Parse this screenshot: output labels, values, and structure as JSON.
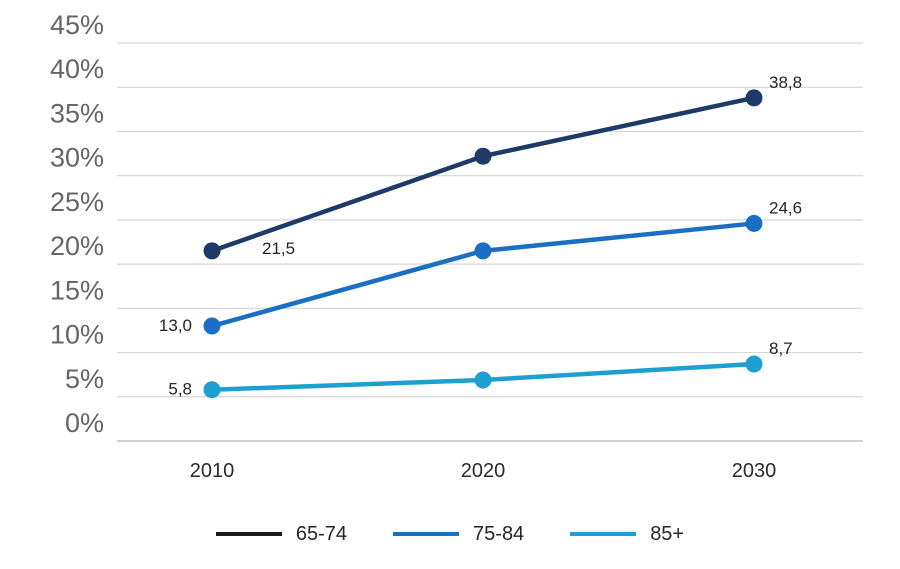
{
  "chart_data": {
    "type": "line",
    "title": "",
    "categories": [
      "2010",
      "2020",
      "2030"
    ],
    "series": [
      {
        "name": "65-74",
        "color": "#1e3a66",
        "legend_swatch_color": "#1a1a1a",
        "values": [
          21.5,
          32.2,
          38.8
        ],
        "point_labels": [
          "21,5",
          "",
          "38,8"
        ],
        "first_label_side": "right"
      },
      {
        "name": "75-84",
        "color": "#1b6fc2",
        "legend_swatch_color": "#1b6fc2",
        "values": [
          13.0,
          21.5,
          24.6
        ],
        "point_labels": [
          "13,0",
          "",
          "24,6"
        ],
        "first_label_side": "left"
      },
      {
        "name": "85+",
        "color": "#1e9fd2",
        "legend_swatch_color": "#1e9fd2",
        "values": [
          5.8,
          6.9,
          8.7
        ],
        "point_labels": [
          "5,8",
          "",
          "8,7"
        ],
        "first_label_side": "left"
      }
    ],
    "ylim": [
      0,
      45
    ],
    "ytick_step": 5,
    "y_tick_labels": [
      "45%",
      "40%",
      "35%",
      "30%",
      "25%",
      "20%",
      "15%",
      "10%",
      "5%",
      "0%"
    ],
    "x_tick_labels": [
      "2010",
      "2020",
      "2030"
    ],
    "decimal_separator": ",",
    "grid": true,
    "legend_position": "bottom",
    "colors": {
      "gridline": "#d6d6d6",
      "axis_line": "#c4c4c4",
      "y_tick_text": "#666666",
      "x_tick_text": "#2b2b2b",
      "point_label_text": "#262626"
    }
  }
}
